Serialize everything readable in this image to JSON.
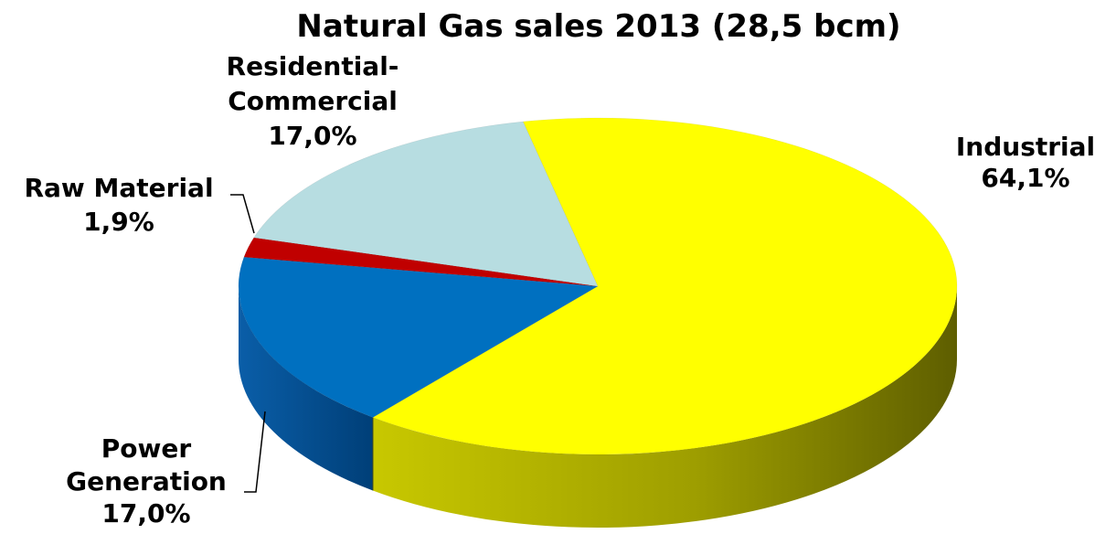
{
  "chart_data": {
    "type": "pie",
    "title": "Natural Gas sales 2013 (28,5 bcm)",
    "labels": [
      "Industrial",
      "Power Generation",
      "Raw Material",
      "Residential-Commercial"
    ],
    "values": [
      64.1,
      17.0,
      1.9,
      17.0
    ],
    "value_labels": [
      "64,1%",
      "17,0%",
      "1,9%",
      "17,0%"
    ],
    "colors": [
      "#ffff00",
      "#0070c0",
      "#c00000",
      "#b7dde1"
    ],
    "side_colors": [
      "#8b8b00",
      "#004c8c",
      "#7a0000",
      "#7a9ea2"
    ],
    "style": "3d-pie",
    "legend": "none"
  }
}
